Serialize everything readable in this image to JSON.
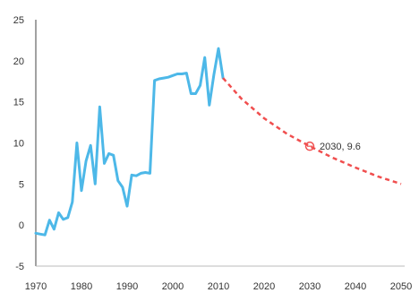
{
  "chart_data": {
    "type": "line",
    "title": "",
    "xlabel": "",
    "ylabel": "",
    "xlim": [
      1970,
      2050
    ],
    "ylim": [
      -5,
      25
    ],
    "x_ticks": [
      1970,
      1980,
      1990,
      2000,
      2010,
      2020,
      2030,
      2040,
      2050
    ],
    "y_ticks": [
      -5,
      0,
      5,
      10,
      15,
      20,
      25
    ],
    "x_tick_labels": [
      "1970",
      "1980",
      "1990",
      "2000",
      "2010",
      "2020",
      "2030",
      "2040",
      "2050"
    ],
    "y_tick_labels": [
      "-5",
      "0",
      "5",
      "10",
      "15",
      "20",
      "25"
    ],
    "grid": false,
    "series": [
      {
        "style": "solid",
        "color": "#4DB8E8",
        "x": [
          1970,
          1971,
          1972,
          1973,
          1974,
          1975,
          1976,
          1977,
          1978,
          1979,
          1980,
          1981,
          1982,
          1983,
          1984,
          1985,
          1986,
          1987,
          1988,
          1989,
          1990,
          1991,
          1992,
          1993,
          1994,
          1995,
          1996,
          1997,
          1998,
          1999,
          2000,
          2001,
          2002,
          2003,
          2004,
          2005,
          2006,
          2007,
          2008,
          2009,
          2010,
          2011
        ],
        "y": [
          -1.0,
          -1.1,
          -1.2,
          0.6,
          -0.5,
          1.5,
          0.7,
          0.9,
          2.8,
          10.0,
          4.2,
          7.8,
          9.7,
          5.0,
          14.4,
          7.5,
          8.7,
          8.5,
          5.4,
          4.6,
          2.3,
          6.1,
          6.0,
          6.3,
          6.4,
          6.3,
          17.6,
          17.8,
          17.9,
          18.0,
          18.2,
          18.4,
          18.4,
          18.5,
          16.0,
          16.0,
          17.0,
          20.4,
          14.6,
          18.3,
          21.5,
          17.9
        ]
      },
      {
        "style": "dashed",
        "color": "#F04E4E",
        "x": [
          2011,
          2015,
          2020,
          2025,
          2030,
          2035,
          2040,
          2045,
          2050
        ],
        "y": [
          17.9,
          15.4,
          13.0,
          11.1,
          9.6,
          8.2,
          7.0,
          5.9,
          5.0
        ]
      }
    ],
    "annotation": {
      "x": 2030,
      "y": 9.6,
      "text": "2030, 9.6",
      "marker_color": "#F04E4E"
    }
  }
}
